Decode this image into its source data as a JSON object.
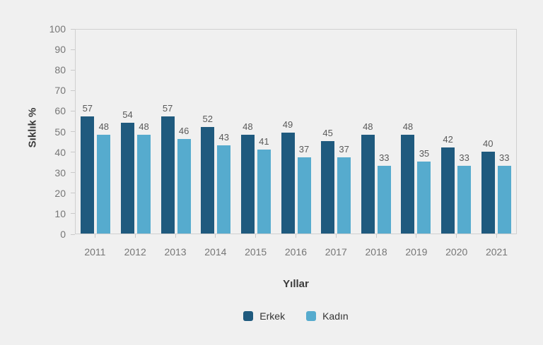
{
  "chart_data": {
    "type": "bar",
    "title": "",
    "xlabel": "Yıllar",
    "ylabel": "Sıklık %",
    "categories": [
      "2011",
      "2012",
      "2013",
      "2014",
      "2015",
      "2016",
      "2017",
      "2018",
      "2019",
      "2020",
      "2021"
    ],
    "series": [
      {
        "name": "Erkek",
        "color": "#1f5a7e",
        "values": [
          57,
          54,
          57,
          52,
          48,
          49,
          45,
          48,
          48,
          42,
          40
        ]
      },
      {
        "name": "Kadın",
        "color": "#56abce",
        "values": [
          48,
          48,
          46,
          43,
          41,
          37,
          37,
          33,
          35,
          33,
          33
        ]
      }
    ],
    "ylim": [
      0,
      100
    ],
    "yticks": [
      0,
      10,
      20,
      30,
      40,
      50,
      60,
      70,
      80,
      90,
      100
    ],
    "grid": false,
    "legend_position": "bottom",
    "value_labels": true
  },
  "colors": {
    "background": "#f0f0f0",
    "axis_line": "#d0d0d0",
    "tick_label": "#767676",
    "value_label": "#595959",
    "axis_title": "#3b3b3b",
    "series_erkek": "#1f5a7e",
    "series_kadin": "#56abce"
  }
}
